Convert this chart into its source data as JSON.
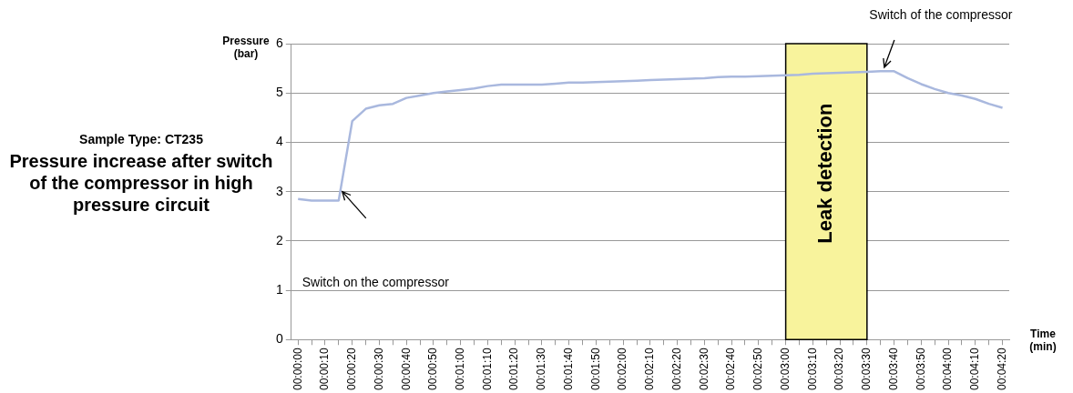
{
  "chart_data": {
    "type": "line",
    "title": "Pressure increase after switch of the compressor  in high pressure circuit",
    "subtitle": "Sample Type: CT235",
    "xlabel": "Time (min)",
    "ylabel": "Pressure (bar)",
    "categories": [
      "00:00:00",
      null,
      "00:00:10",
      null,
      "00:00:20",
      null,
      "00:00:30",
      null,
      "00:00:40",
      null,
      "00:00:50",
      null,
      "00:01:00",
      null,
      "00:01:10",
      null,
      "00:01:20",
      null,
      "00:01:30",
      null,
      "00:01:40",
      null,
      "00:01:50",
      null,
      "00:02:00",
      null,
      "00:02:10",
      null,
      "00:02:20",
      null,
      "00:02:30",
      null,
      "00:02:40",
      null,
      "00:02:50",
      null,
      "00:03:00",
      null,
      "00:03:10",
      null,
      "00:03:20",
      null,
      "00:03:30",
      null,
      "00:03:40",
      null,
      "00:03:50",
      null,
      "00:04:00",
      null,
      "00:04:10",
      null,
      "00:04:20"
    ],
    "series": [
      {
        "color": "#a9b8de",
        "values": [
          2.85,
          2.82,
          2.82,
          2.82,
          4.43,
          4.68,
          4.75,
          4.78,
          4.9,
          4.95,
          5.0,
          5.03,
          5.06,
          5.09,
          5.14,
          5.17,
          5.17,
          5.17,
          5.17,
          5.19,
          5.21,
          5.21,
          5.22,
          5.23,
          5.24,
          5.25,
          5.26,
          5.27,
          5.28,
          5.29,
          5.3,
          5.32,
          5.33,
          5.33,
          5.34,
          5.35,
          5.36,
          5.37,
          5.39,
          5.4,
          5.41,
          5.42,
          5.43,
          5.44,
          5.44,
          5.3,
          5.18,
          5.08,
          5.0,
          4.95,
          4.88,
          4.78,
          4.7
        ]
      }
    ],
    "ylim": [
      0,
      6
    ],
    "yticks": [
      0,
      1,
      2,
      3,
      4,
      5,
      6
    ],
    "grid": "y",
    "legend": false,
    "marker": "none",
    "bands": [
      {
        "axis": "x",
        "from": "00:03:00",
        "to": "00:03:30",
        "label": "Leak detection",
        "color": "#f8f39c"
      }
    ],
    "annotations": [
      "Switch on the compressor",
      "Switch of the compressor"
    ]
  }
}
